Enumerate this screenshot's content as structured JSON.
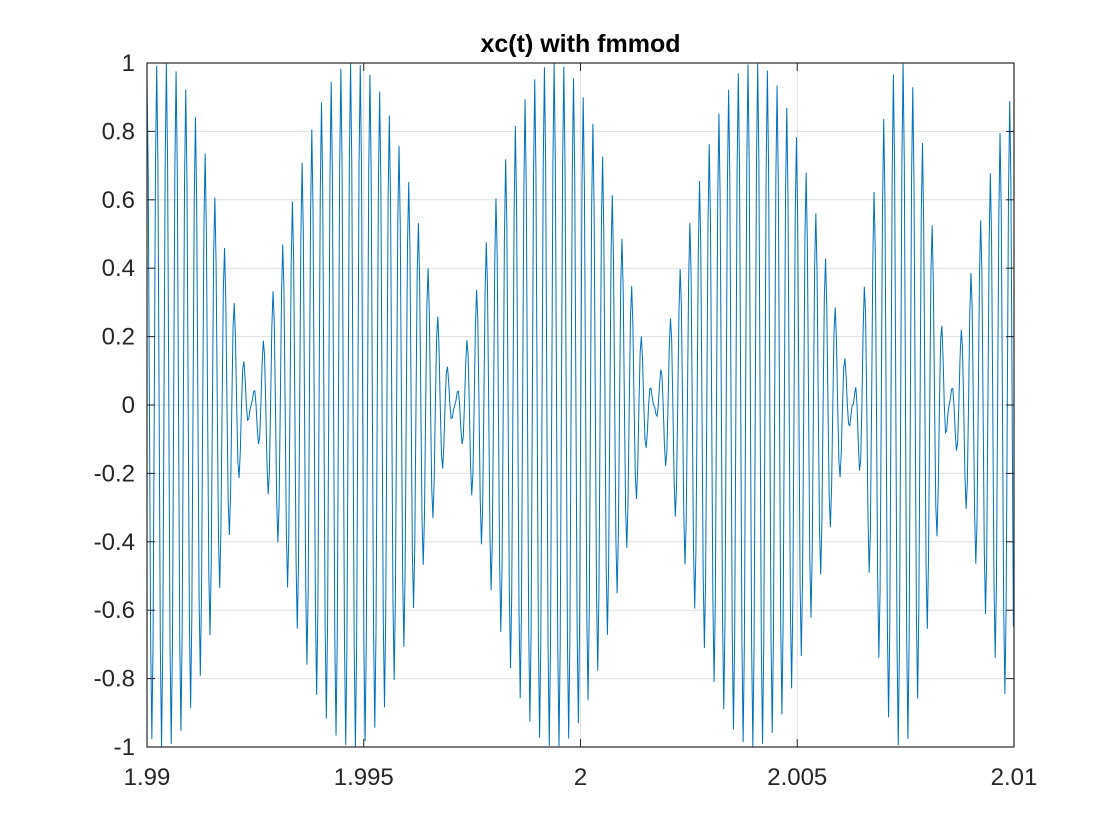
{
  "chart_data": {
    "type": "line",
    "title": "xc(t) with fmmod",
    "xlabel": "",
    "ylabel": "",
    "xlim": [
      1.99,
      2.01
    ],
    "ylim": [
      -1,
      1
    ],
    "grid": true,
    "x_ticks": [
      1.99,
      1.995,
      2,
      2.005,
      2.01
    ],
    "x_tick_labels": [
      "1.99",
      "1.995",
      "2",
      "2.005",
      "2.01"
    ],
    "y_ticks": [
      -1,
      -0.8,
      -0.6,
      -0.4,
      -0.2,
      0,
      0.2,
      0.4,
      0.6,
      0.8,
      1
    ],
    "y_tick_labels": [
      "-1",
      "-0.8",
      "-0.6",
      "-0.4",
      "-0.2",
      "0",
      "0.2",
      "0.4",
      "0.6",
      "0.8",
      "1"
    ],
    "series": [
      {
        "color": "#0072BD",
        "envelope_nulls_x": [
          1.9924,
          1.9971,
          2.0017,
          2.0063,
          2.0085
        ],
        "envelope_peaks_x": [
          1.99,
          1.995,
          2.0,
          2.0033,
          2.0066,
          2.01
        ],
        "carrier_cycles_per_null_interval": 18,
        "peak_amplitude": 1.0
      }
    ]
  },
  "colors": {
    "line": "#0072BD",
    "grid": "#dfdfdf",
    "axes": "#262626",
    "background": "#ffffff"
  }
}
